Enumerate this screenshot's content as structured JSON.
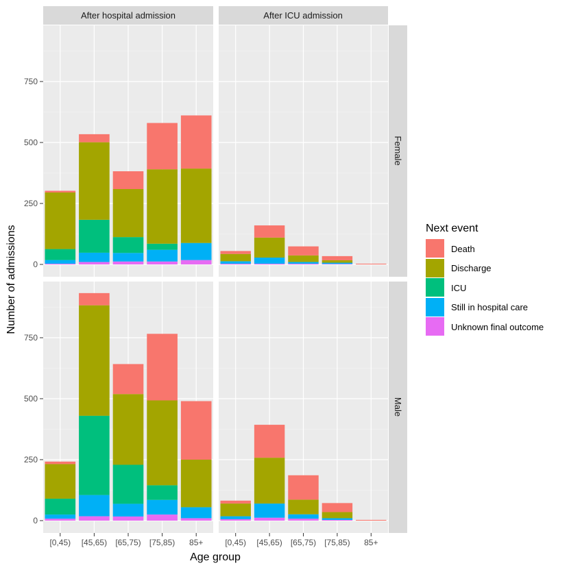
{
  "chart_data": {
    "type": "bar",
    "stacked": true,
    "xlabel": "Age group",
    "ylabel": "Number of admissions",
    "ylim": [
      0,
      980
    ],
    "yticks": [
      0,
      250,
      500,
      750
    ],
    "categories": [
      "[0,45)",
      "[45,65)",
      "[65,75)",
      "[75,85)",
      "85+"
    ],
    "col_facets": [
      "After hospital admission",
      "After ICU admission"
    ],
    "row_facets": [
      "Female",
      "Male"
    ],
    "legend": {
      "title": "Next event",
      "position": "right",
      "entries": [
        {
          "name": "Death",
          "color": "#F8766D"
        },
        {
          "name": "Discharge",
          "color": "#A3A500"
        },
        {
          "name": "ICU",
          "color": "#00BF7D"
        },
        {
          "name": "Still in hospital care",
          "color": "#00B0F6"
        },
        {
          "name": "Unknown final outcome",
          "color": "#E76BF3"
        }
      ]
    },
    "stack_order_top_to_bottom": [
      "Death",
      "Discharge",
      "ICU",
      "Still in hospital care",
      "Unknown final outcome"
    ],
    "panels": [
      {
        "row": "Female",
        "col": "After hospital admission",
        "series": {
          "Death": [
            7,
            33,
            73,
            190,
            218
          ],
          "Discharge": [
            232,
            318,
            197,
            305,
            305
          ],
          "ICU": [
            45,
            135,
            65,
            25,
            0
          ],
          "Still in hospital care": [
            15,
            38,
            35,
            48,
            70
          ],
          "Unknown final outcome": [
            3,
            10,
            12,
            12,
            18
          ]
        }
      },
      {
        "row": "Female",
        "col": "After ICU admission",
        "series": {
          "Death": [
            12,
            50,
            37,
            17,
            3
          ],
          "Discharge": [
            30,
            82,
            27,
            10,
            0
          ],
          "ICU": [
            0,
            0,
            0,
            0,
            0
          ],
          "Still in hospital care": [
            10,
            25,
            7,
            5,
            0
          ],
          "Unknown final outcome": [
            3,
            3,
            3,
            2,
            0
          ]
        }
      },
      {
        "row": "Male",
        "col": "After hospital admission",
        "series": {
          "Death": [
            10,
            50,
            123,
            273,
            240
          ],
          "Discharge": [
            142,
            453,
            290,
            348,
            195
          ],
          "ICU": [
            65,
            325,
            160,
            60,
            0
          ],
          "Still in hospital care": [
            17,
            87,
            52,
            60,
            45
          ],
          "Unknown final outcome": [
            8,
            18,
            17,
            25,
            10
          ]
        }
      },
      {
        "row": "Male",
        "col": "After ICU admission",
        "series": {
          "Death": [
            12,
            135,
            100,
            37,
            3
          ],
          "Discharge": [
            52,
            188,
            60,
            25,
            0
          ],
          "ICU": [
            0,
            0,
            0,
            0,
            0
          ],
          "Still in hospital care": [
            12,
            58,
            18,
            7,
            0
          ],
          "Unknown final outcome": [
            6,
            12,
            8,
            3,
            0
          ]
        }
      }
    ]
  }
}
